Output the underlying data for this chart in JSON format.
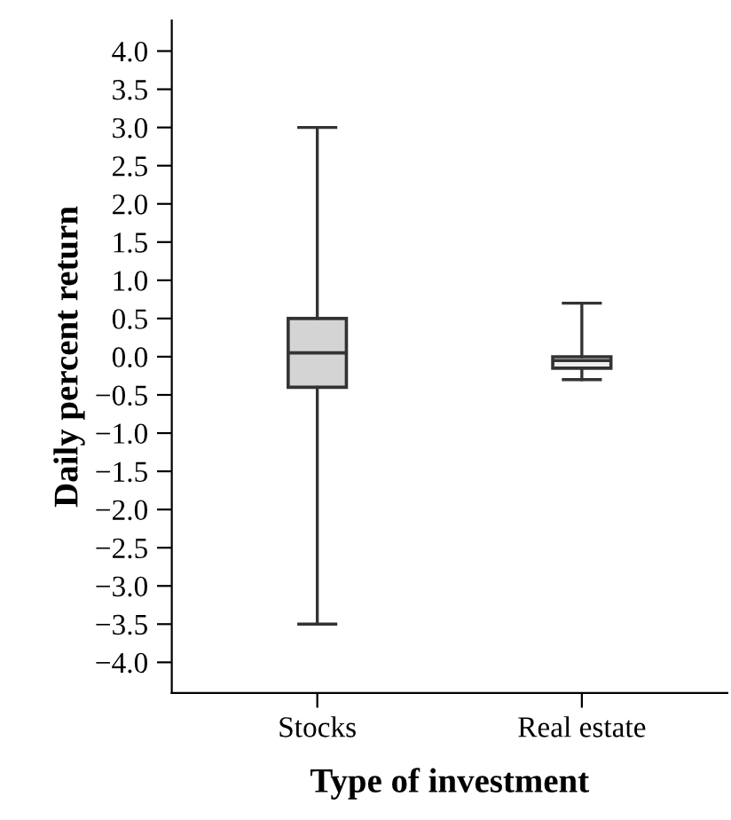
{
  "chart_data": {
    "type": "box",
    "xlabel": "Type of investment",
    "ylabel": "Daily percent return",
    "categories": [
      "Stocks",
      "Real estate"
    ],
    "boxes": [
      {
        "low": -3.5,
        "q1": -0.4,
        "median": 0.05,
        "q3": 0.5,
        "high": 3.0
      },
      {
        "low": -0.3,
        "q1": -0.15,
        "median": -0.05,
        "q3": 0.0,
        "high": 0.7
      }
    ],
    "colors": [
      "#d4d4d4",
      "#eeeeee"
    ],
    "ylim": [
      -4.4,
      4.4
    ],
    "yticks": [
      {
        "value": -4.0,
        "label": "−4.0"
      },
      {
        "value": -3.5,
        "label": "−3.5"
      },
      {
        "value": -3.0,
        "label": "−3.0"
      },
      {
        "value": -2.5,
        "label": "−2.5"
      },
      {
        "value": -2.0,
        "label": "−2.0"
      },
      {
        "value": -1.5,
        "label": "−1.5"
      },
      {
        "value": -1.0,
        "label": "−1.0"
      },
      {
        "value": -0.5,
        "label": "−0.5"
      },
      {
        "value": 0.0,
        "label": "0.0"
      },
      {
        "value": 0.5,
        "label": "0.5"
      },
      {
        "value": 1.0,
        "label": "1.0"
      },
      {
        "value": 1.5,
        "label": "1.5"
      },
      {
        "value": 2.0,
        "label": "2.0"
      },
      {
        "value": 2.5,
        "label": "2.5"
      },
      {
        "value": 3.0,
        "label": "3.0"
      },
      {
        "value": 3.5,
        "label": "3.5"
      },
      {
        "value": 4.0,
        "label": "4.0"
      }
    ],
    "grid": false
  }
}
